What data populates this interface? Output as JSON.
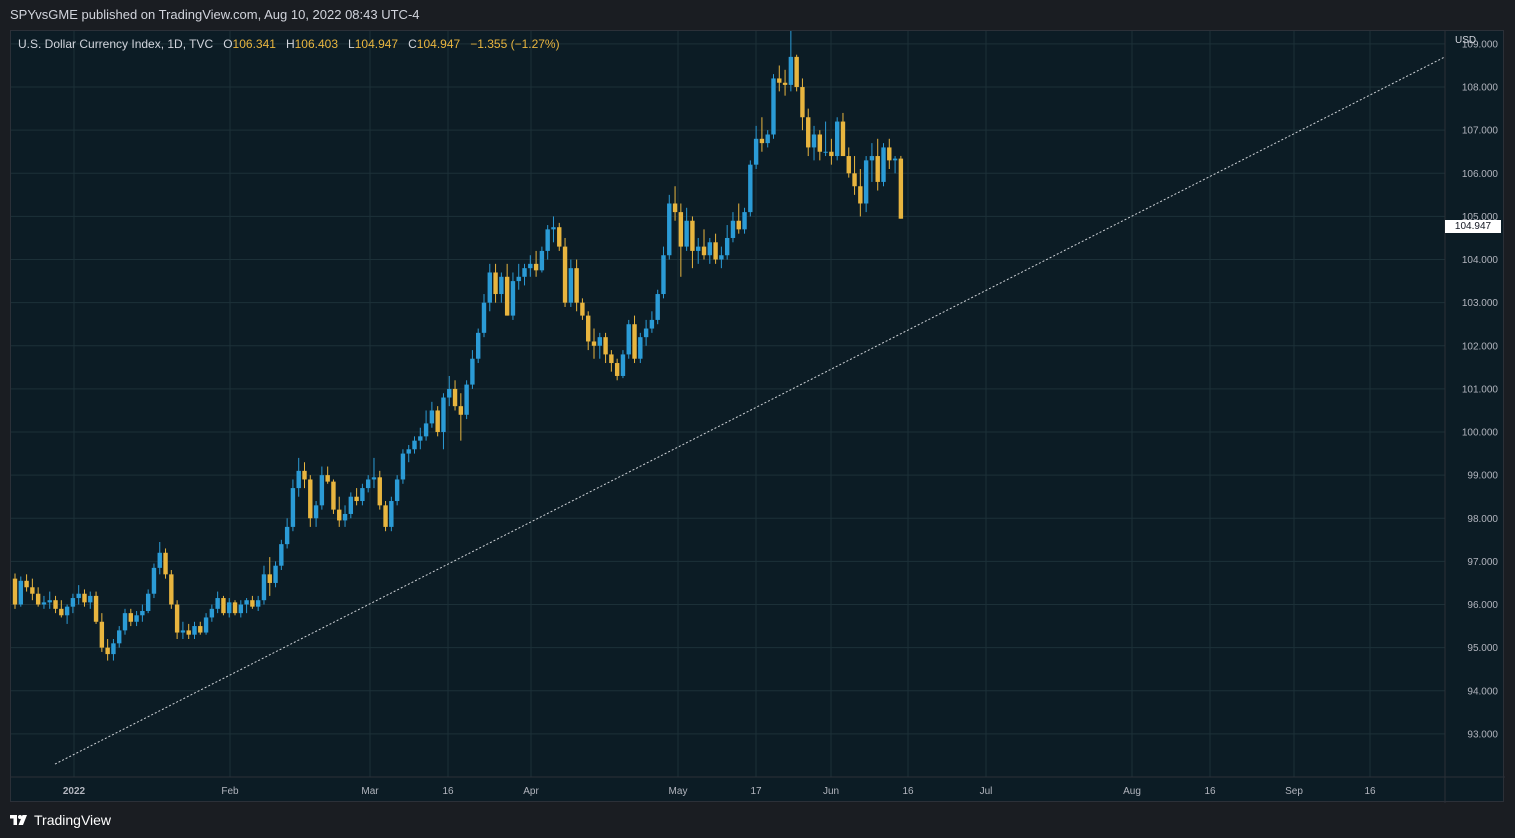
{
  "header": {
    "publish_line": "SPYvsGME published on TradingView.com, Aug 10, 2022 08:43 UTC-4"
  },
  "legend": {
    "symbol_line": "U.S. Dollar Currency Index, 1D, TVC",
    "o_label": "O",
    "o_value": "106.341",
    "h_label": "H",
    "h_value": "106.403",
    "l_label": "L",
    "l_value": "104.947",
    "c_label": "C",
    "c_value": "104.947",
    "change": "−1.355 (−1.27%)"
  },
  "footer": {
    "brand": "TradingView"
  },
  "colors": {
    "up": "#2b9bd6",
    "down": "#e8b53f",
    "grid": "#1c3038",
    "trendline": "#cfd3d8",
    "axis_text": "#b2b5be",
    "background": "#0c1c25"
  },
  "chart_data": {
    "type": "candlestick",
    "title": "U.S. Dollar Currency Index, 1D, TVC",
    "currency": "USD",
    "last_price": "104.947",
    "y_axis": {
      "range": [
        92.0,
        109.3
      ],
      "ticks": [
        "93.000",
        "94.000",
        "95.000",
        "96.000",
        "97.000",
        "98.000",
        "99.000",
        "100.000",
        "101.000",
        "102.000",
        "103.000",
        "104.000",
        "105.000",
        "106.000",
        "107.000",
        "108.000",
        "109.000"
      ]
    },
    "x_axis": {
      "range": [
        0,
        181
      ],
      "ticks": [
        {
          "label": "2022",
          "day": 9,
          "bold": true
        },
        {
          "label": "Feb",
          "day": 31
        },
        {
          "label": "Mar",
          "day": 59
        },
        {
          "label": "16",
          "day": 74
        },
        {
          "label": "Apr",
          "day": 90
        },
        {
          "label": "May",
          "day": 120
        },
        {
          "label": "17",
          "day": 136
        },
        {
          "label": "Jun",
          "day": 151
        },
        {
          "label": "16",
          "day": 166
        },
        {
          "label": "Jul",
          "day": 181,
          "last": true
        },
        {
          "label": "Aug",
          "day": 0
        },
        {
          "label": "16",
          "day": 0
        },
        {
          "label": "Sep",
          "day": 0
        },
        {
          "label": "16",
          "day": 0
        }
      ],
      "label_positions_note": "labels as printed on the axis"
    },
    "trendline": {
      "from_price": 92.3,
      "to_price": 108.7
    },
    "candles": [
      [
        96.6,
        96.72,
        95.9,
        96.0
      ],
      [
        96.0,
        96.65,
        95.95,
        96.55
      ],
      [
        96.55,
        96.7,
        96.3,
        96.4
      ],
      [
        96.4,
        96.6,
        96.1,
        96.25
      ],
      [
        96.25,
        96.4,
        95.95,
        96.0
      ],
      [
        96.0,
        96.2,
        95.9,
        96.05
      ],
      [
        96.05,
        96.3,
        95.9,
        96.1
      ],
      [
        96.1,
        96.2,
        95.8,
        95.9
      ],
      [
        95.9,
        96.1,
        95.7,
        95.75
      ],
      [
        95.75,
        96.0,
        95.55,
        95.95
      ],
      [
        95.95,
        96.25,
        95.8,
        96.15
      ],
      [
        96.15,
        96.45,
        96.0,
        96.25
      ],
      [
        96.25,
        96.35,
        95.95,
        96.05
      ],
      [
        96.05,
        96.3,
        95.9,
        96.2
      ],
      [
        96.2,
        96.3,
        95.55,
        95.6
      ],
      [
        95.6,
        95.8,
        94.9,
        95.0
      ],
      [
        95.0,
        95.2,
        94.7,
        94.85
      ],
      [
        94.85,
        95.2,
        94.7,
        95.1
      ],
      [
        95.1,
        95.5,
        95.0,
        95.4
      ],
      [
        95.4,
        95.9,
        95.3,
        95.8
      ],
      [
        95.8,
        95.9,
        95.5,
        95.6
      ],
      [
        95.6,
        95.85,
        95.5,
        95.75
      ],
      [
        95.75,
        96.0,
        95.6,
        95.85
      ],
      [
        95.85,
        96.35,
        95.8,
        96.25
      ],
      [
        96.25,
        96.95,
        96.15,
        96.85
      ],
      [
        96.85,
        97.45,
        96.7,
        97.2
      ],
      [
        97.2,
        97.3,
        96.6,
        96.7
      ],
      [
        96.7,
        96.8,
        95.9,
        96.0
      ],
      [
        96.0,
        96.1,
        95.2,
        95.35
      ],
      [
        95.35,
        95.6,
        95.2,
        95.4
      ],
      [
        95.4,
        95.55,
        95.2,
        95.3
      ],
      [
        95.3,
        95.6,
        95.2,
        95.5
      ],
      [
        95.5,
        95.6,
        95.3,
        95.35
      ],
      [
        95.35,
        95.8,
        95.3,
        95.7
      ],
      [
        95.7,
        96.0,
        95.6,
        95.9
      ],
      [
        95.9,
        96.3,
        95.8,
        96.15
      ],
      [
        96.15,
        96.2,
        95.75,
        95.8
      ],
      [
        95.8,
        96.15,
        95.7,
        96.05
      ],
      [
        96.05,
        96.1,
        95.75,
        95.8
      ],
      [
        95.8,
        96.1,
        95.7,
        96.0
      ],
      [
        96.0,
        96.15,
        95.8,
        96.1
      ],
      [
        96.1,
        96.2,
        95.9,
        95.95
      ],
      [
        95.95,
        96.2,
        95.85,
        96.1
      ],
      [
        96.1,
        96.9,
        96.0,
        96.7
      ],
      [
        96.7,
        97.1,
        96.2,
        96.5
      ],
      [
        96.5,
        97.0,
        96.4,
        96.9
      ],
      [
        96.9,
        97.5,
        96.8,
        97.4
      ],
      [
        97.4,
        98.0,
        97.3,
        97.8
      ],
      [
        97.8,
        98.9,
        97.7,
        98.7
      ],
      [
        98.7,
        99.4,
        98.5,
        99.1
      ],
      [
        99.1,
        99.3,
        98.7,
        98.9
      ],
      [
        98.9,
        99.0,
        97.8,
        98.0
      ],
      [
        98.0,
        98.4,
        97.8,
        98.3
      ],
      [
        98.3,
        99.2,
        98.2,
        99.0
      ],
      [
        99.0,
        99.2,
        98.8,
        98.85
      ],
      [
        98.85,
        98.9,
        98.1,
        98.2
      ],
      [
        98.2,
        98.5,
        97.8,
        97.95
      ],
      [
        97.95,
        98.3,
        97.8,
        98.1
      ],
      [
        98.1,
        98.6,
        98.0,
        98.5
      ],
      [
        98.5,
        98.7,
        98.3,
        98.4
      ],
      [
        98.4,
        98.8,
        98.3,
        98.7
      ],
      [
        98.7,
        99.0,
        98.6,
        98.9
      ],
      [
        98.9,
        99.4,
        98.7,
        98.95
      ],
      [
        98.95,
        99.1,
        98.2,
        98.3
      ],
      [
        98.3,
        98.4,
        97.7,
        97.8
      ],
      [
        97.8,
        98.5,
        97.7,
        98.4
      ],
      [
        98.4,
        99.0,
        98.3,
        98.9
      ],
      [
        98.9,
        99.6,
        98.8,
        99.5
      ],
      [
        99.5,
        99.7,
        99.3,
        99.6
      ],
      [
        99.6,
        99.9,
        99.5,
        99.8
      ],
      [
        99.8,
        100.1,
        99.6,
        99.9
      ],
      [
        99.9,
        100.5,
        99.8,
        100.2
      ],
      [
        100.2,
        100.7,
        100.1,
        100.5
      ],
      [
        100.5,
        100.6,
        99.9,
        100.0
      ],
      [
        100.0,
        100.9,
        99.6,
        100.8
      ],
      [
        100.8,
        101.3,
        100.6,
        101.0
      ],
      [
        101.0,
        101.2,
        100.5,
        100.6
      ],
      [
        100.6,
        100.9,
        99.8,
        100.4
      ],
      [
        100.4,
        101.2,
        100.3,
        101.1
      ],
      [
        101.1,
        101.9,
        101.0,
        101.7
      ],
      [
        101.7,
        102.4,
        101.6,
        102.3
      ],
      [
        102.3,
        103.2,
        102.2,
        103.0
      ],
      [
        103.0,
        103.9,
        102.8,
        103.7
      ],
      [
        103.7,
        103.9,
        103.0,
        103.2
      ],
      [
        103.2,
        103.7,
        103.0,
        103.6
      ],
      [
        103.6,
        103.9,
        102.7,
        102.7
      ],
      [
        102.7,
        103.7,
        102.6,
        103.5
      ],
      [
        103.5,
        103.9,
        103.3,
        103.6
      ],
      [
        103.6,
        103.9,
        103.4,
        103.8
      ],
      [
        103.8,
        104.1,
        103.6,
        103.9
      ],
      [
        103.9,
        104.2,
        103.6,
        103.75
      ],
      [
        103.75,
        104.3,
        103.7,
        104.2
      ],
      [
        104.2,
        104.8,
        104.0,
        104.7
      ],
      [
        104.7,
        105.0,
        104.4,
        104.75
      ],
      [
        104.75,
        104.85,
        104.2,
        104.3
      ],
      [
        104.3,
        104.5,
        102.9,
        103.0
      ],
      [
        103.0,
        104.0,
        102.9,
        103.8
      ],
      [
        103.8,
        104.0,
        102.8,
        103.0
      ],
      [
        103.0,
        103.1,
        102.6,
        102.7
      ],
      [
        102.7,
        102.8,
        101.9,
        102.1
      ],
      [
        102.1,
        102.4,
        101.7,
        102.0
      ],
      [
        102.0,
        102.3,
        101.7,
        102.2
      ],
      [
        102.2,
        102.3,
        101.6,
        101.8
      ],
      [
        101.8,
        101.9,
        101.4,
        101.6
      ],
      [
        101.6,
        101.7,
        101.2,
        101.3
      ],
      [
        101.3,
        101.9,
        101.25,
        101.8
      ],
      [
        101.8,
        102.6,
        101.7,
        102.5
      ],
      [
        102.5,
        102.7,
        101.6,
        101.7
      ],
      [
        101.7,
        102.3,
        101.6,
        102.2
      ],
      [
        102.2,
        102.6,
        102.0,
        102.4
      ],
      [
        102.4,
        102.8,
        102.3,
        102.6
      ],
      [
        102.6,
        103.3,
        102.5,
        103.2
      ],
      [
        103.2,
        104.3,
        103.1,
        104.1
      ],
      [
        104.1,
        105.5,
        104.0,
        105.3
      ],
      [
        105.3,
        105.7,
        104.9,
        105.1
      ],
      [
        105.1,
        105.3,
        103.6,
        104.3
      ],
      [
        104.3,
        105.2,
        104.2,
        104.9
      ],
      [
        104.9,
        105.0,
        103.8,
        104.2
      ],
      [
        104.2,
        104.5,
        103.9,
        104.3
      ],
      [
        104.3,
        104.7,
        104.0,
        104.1
      ],
      [
        104.1,
        104.5,
        103.9,
        104.4
      ],
      [
        104.4,
        104.6,
        103.9,
        104.0
      ],
      [
        104.0,
        104.3,
        103.8,
        104.1
      ],
      [
        104.1,
        104.8,
        104.0,
        104.5
      ],
      [
        104.5,
        105.1,
        104.4,
        104.9
      ],
      [
        104.9,
        105.3,
        104.6,
        104.7
      ],
      [
        104.7,
        105.2,
        104.6,
        105.1
      ],
      [
        105.1,
        106.3,
        105.0,
        106.2
      ],
      [
        106.2,
        107.1,
        106.1,
        106.8
      ],
      [
        106.8,
        107.3,
        106.5,
        106.7
      ],
      [
        106.7,
        107.0,
        106.6,
        106.9
      ],
      [
        106.9,
        108.3,
        106.8,
        108.2
      ],
      [
        108.2,
        108.5,
        107.9,
        108.1
      ],
      [
        108.1,
        108.4,
        107.8,
        108.05
      ],
      [
        108.05,
        109.3,
        107.9,
        108.7
      ],
      [
        108.7,
        108.75,
        107.9,
        108.0
      ],
      [
        108.0,
        108.2,
        107.0,
        107.3
      ],
      [
        107.3,
        107.5,
        106.4,
        106.6
      ],
      [
        106.6,
        107.1,
        106.3,
        106.9
      ],
      [
        106.9,
        107.0,
        106.3,
        106.5
      ],
      [
        106.5,
        107.2,
        106.4,
        106.5
      ],
      [
        106.5,
        106.8,
        106.2,
        106.4
      ],
      [
        106.4,
        107.3,
        106.3,
        107.2
      ],
      [
        107.2,
        107.4,
        106.5,
        106.4
      ],
      [
        106.4,
        106.6,
        105.9,
        106.0
      ],
      [
        106.0,
        106.4,
        105.5,
        105.7
      ],
      [
        105.7,
        106.1,
        105.0,
        105.3
      ],
      [
        105.3,
        106.4,
        105.1,
        106.3
      ],
      [
        106.3,
        106.7,
        105.8,
        106.4
      ],
      [
        106.4,
        106.8,
        105.6,
        105.8
      ],
      [
        105.8,
        106.7,
        105.7,
        106.6
      ],
      [
        106.6,
        106.8,
        106.1,
        106.3
      ],
      [
        106.3,
        106.4,
        106.0,
        106.341
      ],
      [
        106.341,
        106.403,
        104.947,
        104.947
      ]
    ]
  }
}
